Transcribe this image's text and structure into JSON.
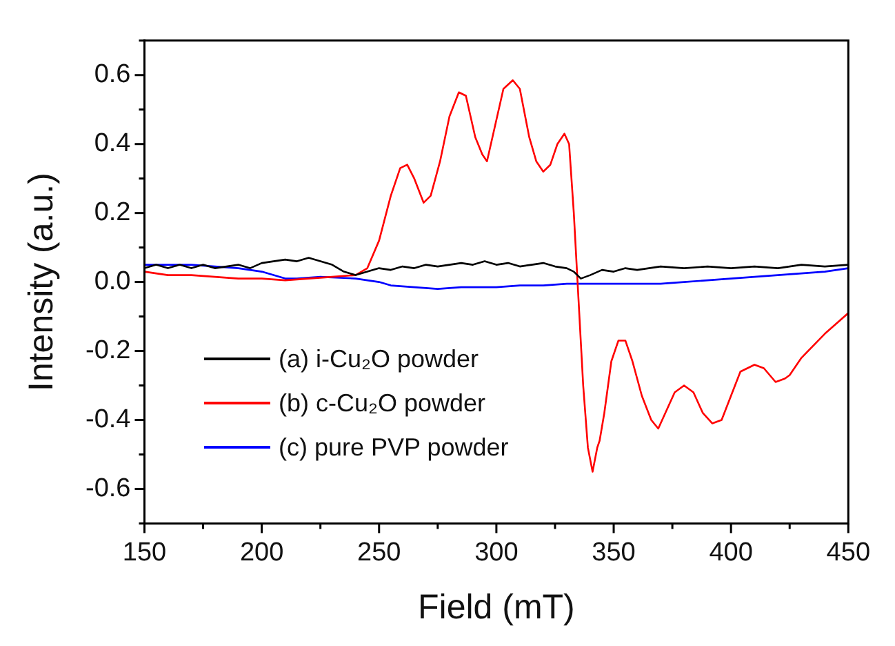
{
  "chart_data": {
    "type": "line",
    "xlabel": "Field (mT)",
    "ylabel": "Intensity (a.u.)",
    "xlim": [
      150,
      450
    ],
    "ylim": [
      -0.7,
      0.7
    ],
    "xticks": [
      150,
      {
        "value": 175,
        "label": null
      },
      200,
      {
        "value": 225,
        "label": null
      },
      250,
      {
        "value": 275,
        "label": null
      },
      300,
      {
        "value": 325,
        "label": null
      },
      350,
      {
        "value": 375,
        "label": null
      },
      400,
      {
        "value": 425,
        "label": null
      },
      450
    ],
    "yticks": [
      {
        "value": -0.7,
        "label": null
      },
      -0.6,
      {
        "value": -0.5,
        "label": null
      },
      -0.4,
      {
        "value": -0.3,
        "label": null
      },
      -0.2,
      {
        "value": -0.1,
        "label": null
      },
      {
        "value": 0,
        "label": "0.0"
      },
      {
        "value": 0.1,
        "label": null
      },
      0.2,
      {
        "value": 0.3,
        "label": null
      },
      0.4,
      {
        "value": 0.5,
        "label": null
      },
      0.6,
      {
        "value": 0.7,
        "label": null
      }
    ],
    "grid": false,
    "legend": "bottom left",
    "marker": "none",
    "line_style": "solid",
    "series": [
      {
        "name": "(a) i-Cu₂O powder",
        "color": "#000000",
        "x": [
          150,
          155,
          160,
          165,
          170,
          175,
          180,
          185,
          190,
          195,
          200,
          205,
          210,
          215,
          220,
          225,
          230,
          235,
          240,
          245,
          250,
          255,
          260,
          265,
          270,
          275,
          280,
          285,
          290,
          295,
          300,
          305,
          310,
          315,
          320,
          325,
          330,
          333,
          336,
          340,
          345,
          350,
          355,
          360,
          370,
          380,
          390,
          400,
          410,
          420,
          430,
          440,
          450
        ],
        "values": [
          0.04,
          0.05,
          0.04,
          0.05,
          0.04,
          0.05,
          0.04,
          0.045,
          0.05,
          0.04,
          0.055,
          0.06,
          0.065,
          0.06,
          0.07,
          0.06,
          0.05,
          0.03,
          0.02,
          0.03,
          0.04,
          0.035,
          0.045,
          0.04,
          0.05,
          0.045,
          0.05,
          0.055,
          0.05,
          0.06,
          0.05,
          0.055,
          0.045,
          0.05,
          0.055,
          0.045,
          0.04,
          0.03,
          0.01,
          0.02,
          0.035,
          0.03,
          0.04,
          0.035,
          0.045,
          0.04,
          0.045,
          0.04,
          0.045,
          0.04,
          0.05,
          0.045,
          0.05
        ]
      },
      {
        "name": "(b) c-Cu₂O powder",
        "color": "#ff0000",
        "x": [
          150,
          160,
          170,
          180,
          190,
          200,
          210,
          220,
          230,
          240,
          245,
          250,
          255,
          259,
          262,
          265,
          269,
          272,
          276,
          280,
          284,
          287,
          291,
          294,
          296,
          299,
          303,
          307,
          310,
          314,
          317,
          320,
          323,
          326,
          329,
          331,
          333,
          335,
          337,
          339,
          341,
          343,
          344,
          346,
          349,
          352,
          355,
          358,
          362,
          366,
          369,
          372,
          376,
          380,
          384,
          388,
          392,
          396,
          400,
          404,
          410,
          414,
          419,
          423,
          425,
          430,
          440,
          450
        ],
        "values": [
          0.03,
          0.02,
          0.02,
          0.015,
          0.01,
          0.01,
          0.005,
          0.01,
          0.015,
          0.02,
          0.04,
          0.12,
          0.25,
          0.33,
          0.34,
          0.3,
          0.23,
          0.25,
          0.35,
          0.48,
          0.55,
          0.54,
          0.42,
          0.37,
          0.35,
          0.44,
          0.56,
          0.585,
          0.56,
          0.42,
          0.35,
          0.32,
          0.34,
          0.4,
          0.43,
          0.4,
          0.2,
          -0.05,
          -0.3,
          -0.48,
          -0.55,
          -0.48,
          -0.46,
          -0.38,
          -0.23,
          -0.17,
          -0.17,
          -0.23,
          -0.33,
          -0.4,
          -0.425,
          -0.38,
          -0.32,
          -0.3,
          -0.32,
          -0.38,
          -0.41,
          -0.4,
          -0.33,
          -0.26,
          -0.24,
          -0.25,
          -0.29,
          -0.28,
          -0.27,
          -0.22,
          -0.15,
          -0.09
        ]
      },
      {
        "name": "(c) pure PVP powder",
        "color": "#0000ff",
        "x": [
          150,
          160,
          170,
          180,
          190,
          200,
          205,
          210,
          215,
          225,
          240,
          250,
          255,
          265,
          275,
          285,
          300,
          310,
          320,
          330,
          340,
          350,
          360,
          370,
          380,
          390,
          400,
          410,
          420,
          430,
          440,
          450
        ],
        "values": [
          0.05,
          0.05,
          0.05,
          0.045,
          0.04,
          0.03,
          0.02,
          0.01,
          0.01,
          0.015,
          0.01,
          0.0,
          -0.01,
          -0.015,
          -0.02,
          -0.015,
          -0.015,
          -0.01,
          -0.01,
          -0.005,
          -0.005,
          -0.005,
          -0.005,
          -0.005,
          0.0,
          0.005,
          0.01,
          0.015,
          0.02,
          0.025,
          0.03,
          0.04
        ]
      }
    ]
  }
}
